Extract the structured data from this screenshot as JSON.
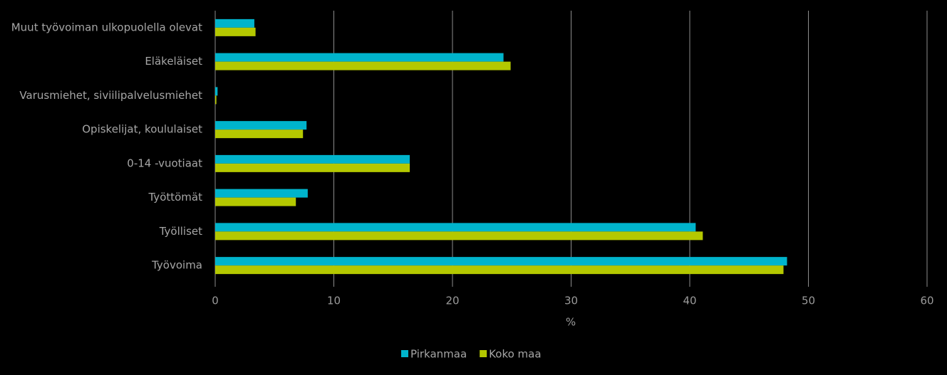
{
  "chart_data": {
    "type": "hbar",
    "categories": [
      "Muut työvoiman ulkopuolella olevat",
      "Eläkeläiset",
      "Varusmiehet, siviilipalvelusmiehet",
      "Opiskelijat, koululaiset",
      "0-14 -vuotiaat",
      "Työttömät",
      "Työlliset",
      "Työvoima"
    ],
    "series": [
      {
        "name": "Pirkanmaa",
        "color": "#00b4cc",
        "values": [
          3.3,
          24.3,
          0.2,
          7.7,
          16.4,
          7.8,
          40.5,
          48.2
        ]
      },
      {
        "name": "Koko maa",
        "color": "#b4c800",
        "values": [
          3.4,
          24.9,
          0.1,
          7.4,
          16.4,
          6.8,
          41.1,
          47.9
        ]
      }
    ],
    "xlabel": "%",
    "xlim": [
      0,
      60
    ],
    "xticks": [
      0,
      10,
      20,
      30,
      40,
      50,
      60
    ],
    "grid": true
  }
}
